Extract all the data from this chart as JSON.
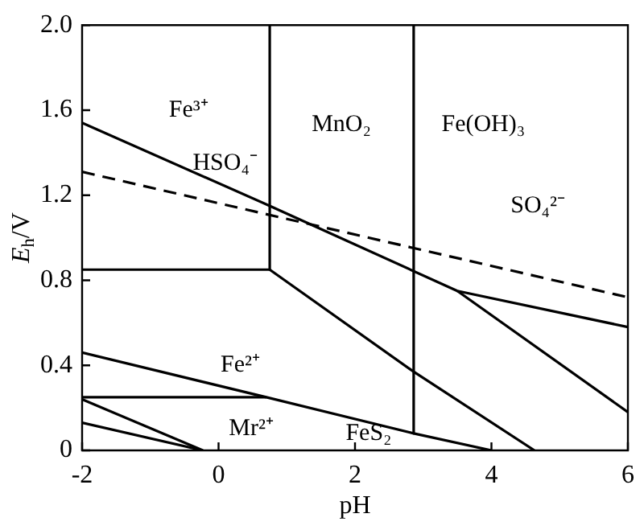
{
  "chart_data": {
    "type": "line",
    "xlabel": "pH",
    "ylabel": "E$_{h}$/V",
    "marker": "none",
    "grid": false,
    "legend": false,
    "xlim": [
      -2,
      6
    ],
    "xticks": [
      -2,
      0,
      2,
      4,
      6
    ],
    "ylim": [
      0,
      2
    ],
    "yticks": [
      0,
      0.4,
      0.8,
      1.2,
      1.6,
      {
        "value": 2,
        "label": "2.0"
      }
    ],
    "series": [
      {
        "color": "#000000",
        "x": [
          -2,
          0.75,
          3.5,
          6
        ],
        "values": [
          1.54,
          1.15,
          0.75,
          0.58
        ]
      },
      {
        "color": "#000000",
        "x": [
          3.5,
          6
        ],
        "values": [
          0.75,
          0.18
        ]
      },
      {
        "color": "#000000",
        "x": [
          -2,
          6
        ],
        "values": [
          1.31,
          0.72
        ],
        "line_style": "dashed"
      },
      {
        "color": "#000000",
        "x": [
          0.75,
          0.75
        ],
        "values": [
          2,
          0.85
        ]
      },
      {
        "color": "#000000",
        "x": [
          -2,
          0.75
        ],
        "values": [
          0.85,
          0.85
        ]
      },
      {
        "color": "#000000",
        "x": [
          0.75,
          2.86,
          4.63
        ],
        "values": [
          0.85,
          0.37,
          0
        ]
      },
      {
        "color": "#000000",
        "x": [
          2.86,
          2.86
        ],
        "values": [
          2,
          0.08
        ]
      },
      {
        "color": "#000000",
        "x": [
          -2,
          0.7,
          2.86,
          4
        ],
        "values": [
          0.46,
          0.25,
          0.08,
          0
        ]
      },
      {
        "color": "#000000",
        "x": [
          -2,
          0.7
        ],
        "values": [
          0.25,
          0.25
        ]
      },
      {
        "color": "#000000",
        "x": [
          -2,
          -0.23
        ],
        "values": [
          0.24,
          0
        ]
      },
      {
        "color": "#000000",
        "x": [
          -2,
          -0.23
        ],
        "values": [
          0.13,
          0
        ]
      }
    ],
    "annotations": [
      "Fe³⁺",
      "HSO₄⁻",
      "MnO₂",
      "Fe(OH)₃",
      "SO₄²⁻",
      "Fe²⁺",
      "Mr²⁺",
      "FeS₂"
    ]
  }
}
